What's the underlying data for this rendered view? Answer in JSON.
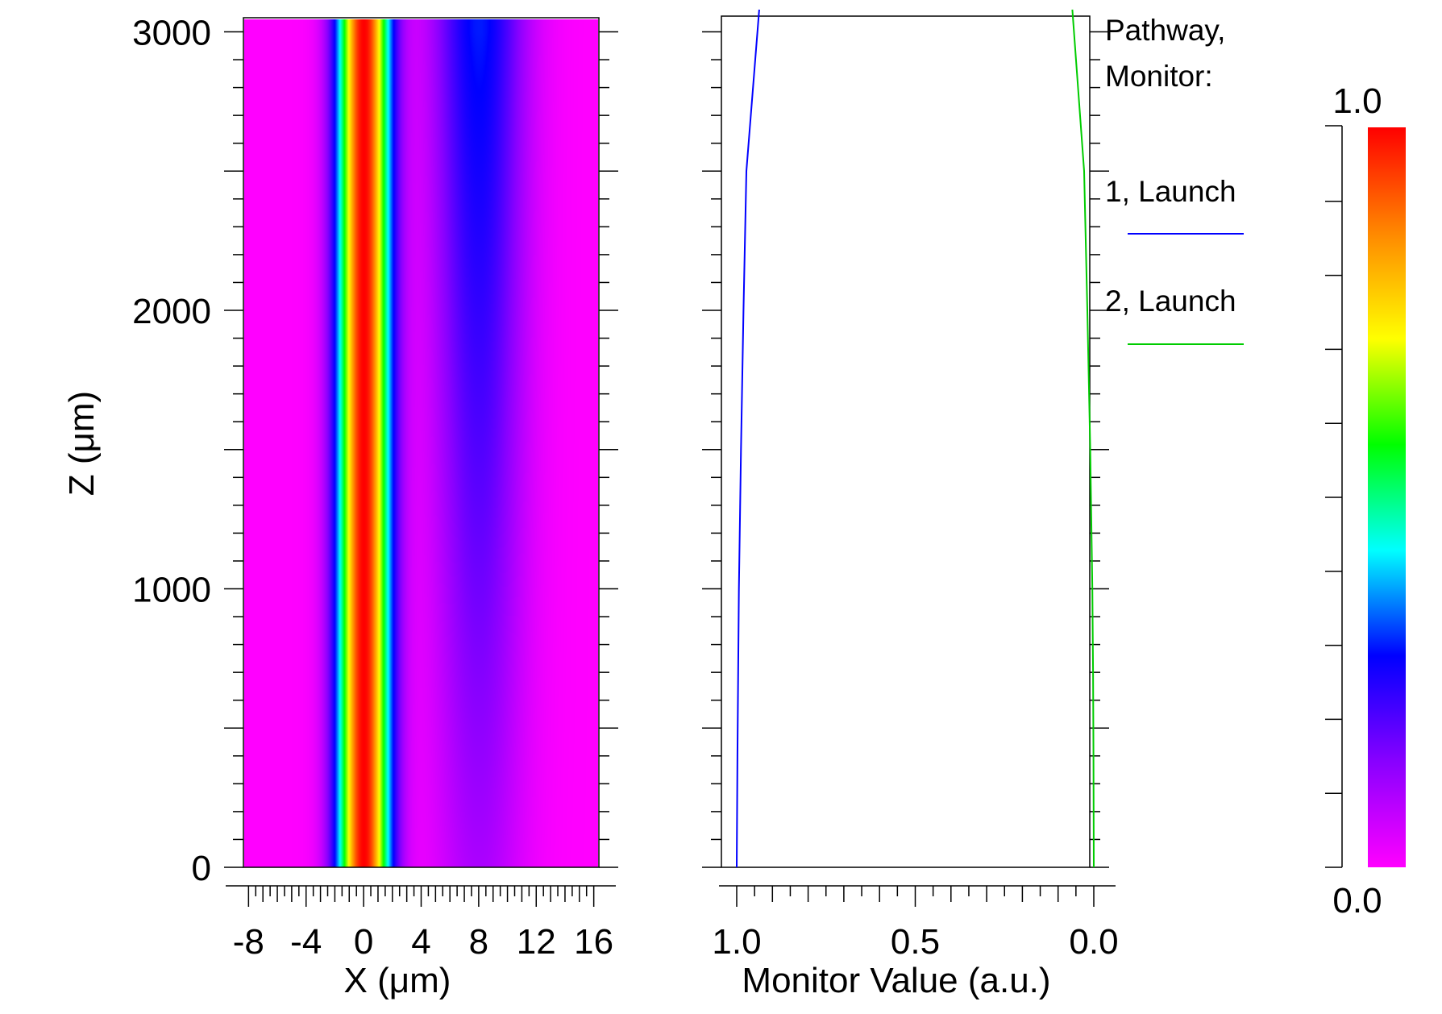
{
  "chart_data": [
    {
      "type": "heatmap",
      "xlabel": "X (μm)",
      "ylabel": "Z (μm)",
      "xlim": [
        -8.3,
        16.3
      ],
      "ylim": [
        0,
        3070
      ],
      "x_tick_labels": [
        "-8",
        "-4",
        "0",
        "4",
        "8",
        "12",
        "16"
      ],
      "x_ticks": [
        -8,
        -4,
        0,
        4,
        8,
        12,
        16
      ],
      "y_tick_labels": [
        "0",
        "1000",
        "2000",
        "3000"
      ],
      "y_ticks": [
        0,
        1000,
        2000,
        3000
      ],
      "field": {
        "description_values": "normalized intensity 0..1",
        "core_peak_x": 0,
        "core_half_width": 2.3,
        "secondary_center_x": 8,
        "secondary_level_at_z0": 0.1,
        "secondary_level_at_z3000": 0.3
      }
    },
    {
      "type": "line",
      "xlabel": "Monitor Value (a.u.)",
      "xlim": [
        1.0,
        0.0
      ],
      "x_reversed": true,
      "ylim": [
        0,
        3070
      ],
      "x_tick_labels": [
        "1.0",
        "0.5",
        "0.0"
      ],
      "x_ticks": [
        1.0,
        0.5,
        0.0
      ],
      "legend_title_lines": [
        "Pathway,",
        "Monitor:"
      ],
      "series": [
        {
          "name": "1, Launch",
          "color": "#0000ff",
          "z": [
            0,
            400,
            700,
            1000,
            1500,
            2000,
            2500,
            3080
          ],
          "values": [
            1.0,
            0.998,
            0.996,
            0.994,
            0.988,
            0.981,
            0.973,
            0.937
          ]
        },
        {
          "name": "2, Launch",
          "color": "#00cc00",
          "z": [
            0,
            400,
            700,
            1000,
            1500,
            2000,
            2500,
            3080
          ],
          "values": [
            0.0,
            0.001,
            0.002,
            0.004,
            0.01,
            0.018,
            0.027,
            0.06
          ]
        }
      ]
    },
    {
      "type": "colorbar",
      "min_label": "0.0",
      "max_label": "1.0",
      "range": [
        0.0,
        1.0
      ],
      "colors": [
        "#ff00ff",
        "#8800ff",
        "#0000ff",
        "#00ffff",
        "#00ff00",
        "#ffff00",
        "#ff8800",
        "#ff0000"
      ]
    }
  ]
}
